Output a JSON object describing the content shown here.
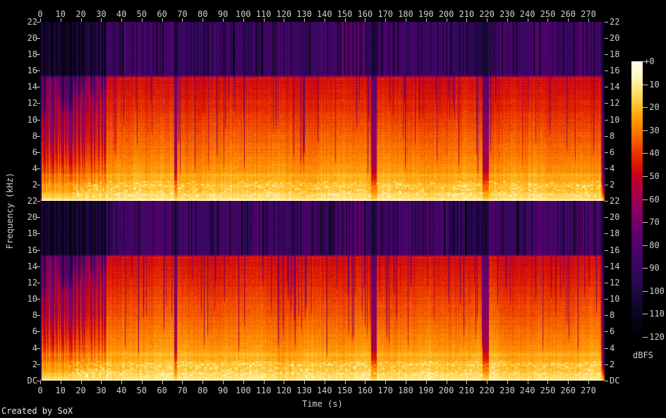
{
  "meta": {
    "credit": "Created by SoX"
  },
  "colors": {
    "background": "#000000",
    "tick_color": "#c8c8c8",
    "label_color": "#cfcfcf"
  },
  "axes": {
    "x": {
      "title": "Time (s)",
      "tick_labels": [
        "0",
        "10",
        "20",
        "30",
        "40",
        "50",
        "60",
        "70",
        "80",
        "90",
        "100",
        "110",
        "120",
        "130",
        "140",
        "150",
        "160",
        "170",
        "180",
        "190",
        "200",
        "210",
        "220",
        "230",
        "240",
        "250",
        "260",
        "270"
      ]
    },
    "y": {
      "title": "Frequency (kHz)",
      "channel_tick_labels": [
        "22",
        "20",
        "18",
        "16",
        "14",
        "12",
        "10",
        "8",
        "6",
        "4",
        "2"
      ],
      "dc_label": "DC"
    }
  },
  "colorbar": {
    "title": "dBFS",
    "tick_labels": [
      "+0",
      "-10",
      "-20",
      "-30",
      "-40",
      "-50",
      "-60",
      "-70",
      "-80",
      "-90",
      "-100",
      "-110",
      "-120"
    ]
  },
  "chart_data": {
    "type": "heatmap",
    "subtype": "audio-spectrogram",
    "title": "",
    "xlabel": "Time (s)",
    "ylabel": "Frequency (kHz)",
    "zlabel": "dBFS",
    "channels": 2,
    "duration_s": 278,
    "x_tick_interval_s": 10,
    "freq_max_khz": 22,
    "freq_tick_interval_khz": 2,
    "db_range": [
      -120,
      0
    ],
    "grid": false,
    "legend": "colorbar-right",
    "bandwidth_cutoff_khz": 15.2,
    "palette_db_stops": [
      [
        0,
        "#ffffec"
      ],
      [
        -5,
        "#fffbd0"
      ],
      [
        -10,
        "#ffee9a"
      ],
      [
        -15,
        "#ffd95e"
      ],
      [
        -20,
        "#ffbe26"
      ],
      [
        -25,
        "#ff9d08"
      ],
      [
        -30,
        "#fc7d01"
      ],
      [
        -35,
        "#f55a00"
      ],
      [
        -40,
        "#e93600"
      ],
      [
        -45,
        "#db1600"
      ],
      [
        -50,
        "#c8021c"
      ],
      [
        -55,
        "#b00040"
      ],
      [
        -60,
        "#a00050"
      ],
      [
        -65,
        "#8a0062"
      ],
      [
        -70,
        "#760068"
      ],
      [
        -75,
        "#62006c"
      ],
      [
        -80,
        "#52036c"
      ],
      [
        -85,
        "#440668"
      ],
      [
        -90,
        "#370860"
      ],
      [
        -95,
        "#2a0954"
      ],
      [
        -100,
        "#1f0943"
      ],
      [
        -105,
        "#150731"
      ],
      [
        -110,
        "#0d0522"
      ],
      [
        -115,
        "#050310"
      ],
      [
        -120,
        "#000003"
      ]
    ],
    "base_curve_db": {
      "dc_band": -6,
      "low_250hz": -11,
      "khz_2": -21,
      "khz_4": -26,
      "khz_8": -34,
      "khz_12": -42,
      "at_cutoff": -48,
      "above_cutoff_typical": -86,
      "hairline_min": -117
    },
    "segments": [
      {
        "t0": 0,
        "t1": 0.7,
        "kind": "silence"
      },
      {
        "t0": 0.7,
        "t1": 17,
        "kind": "sparse"
      },
      {
        "t0": 17,
        "t1": 33,
        "kind": "sparse2"
      },
      {
        "t0": 33,
        "t1": 66,
        "kind": "dense",
        "top_db": -86
      },
      {
        "t0": 66,
        "t1": 67.4,
        "kind": "gap"
      },
      {
        "t0": 67.4,
        "t1": 100,
        "kind": "dense",
        "top_db": -88
      },
      {
        "t0": 100,
        "t1": 104.5,
        "kind": "dense",
        "top_db": -95
      },
      {
        "t0": 104.5,
        "t1": 147,
        "kind": "dense",
        "top_db": -87
      },
      {
        "t0": 147,
        "t1": 160,
        "kind": "dense",
        "top_db": -81
      },
      {
        "t0": 160,
        "t1": 163,
        "kind": "dense",
        "top_db": -90
      },
      {
        "t0": 163,
        "t1": 165.6,
        "kind": "gap"
      },
      {
        "t0": 165.6,
        "t1": 203,
        "kind": "dense",
        "top_db": -86
      },
      {
        "t0": 203,
        "t1": 210,
        "kind": "dense",
        "top_db": -92
      },
      {
        "t0": 210,
        "t1": 218,
        "kind": "dense",
        "top_db": -97
      },
      {
        "t0": 218,
        "t1": 221,
        "kind": "gap"
      },
      {
        "t0": 221,
        "t1": 242,
        "kind": "dense",
        "top_db": -87
      },
      {
        "t0": 242,
        "t1": 255,
        "kind": "dense",
        "top_db": -82
      },
      {
        "t0": 255,
        "t1": 264,
        "kind": "dense",
        "top_db": -88
      },
      {
        "t0": 264,
        "t1": 269,
        "kind": "dense",
        "top_db": -80
      },
      {
        "t0": 269,
        "t1": 276,
        "kind": "dense",
        "top_db": -87
      },
      {
        "t0": 276,
        "t1": 278,
        "kind": "fade"
      }
    ]
  }
}
